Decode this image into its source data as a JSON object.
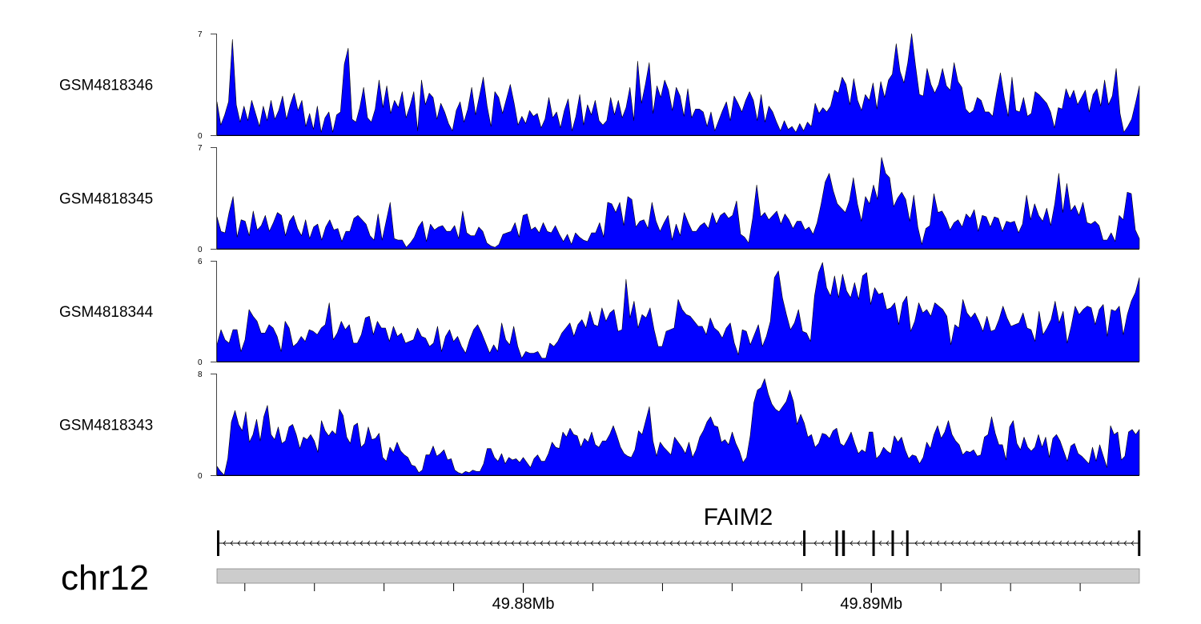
{
  "chart_data": {
    "type": "area",
    "fill_color": "#0000ff",
    "ideogram_color": "#cccccc",
    "chromosome": "chr12",
    "xlim": [
      49.8712,
      49.8977
    ],
    "x_ticks": [
      {
        "value": 49.88,
        "label": "49.88Mb"
      },
      {
        "value": 49.89,
        "label": "49.89Mb"
      }
    ],
    "tracks": [
      {
        "name": "GSM4818346",
        "ylim": [
          0,
          7
        ],
        "ytick_labels": [
          "0",
          "7"
        ],
        "values": [
          2.3,
          0.7,
          1.4,
          2.3,
          6.6,
          2.1,
          0.9,
          2.0,
          1.0,
          2.4,
          1.5,
          0.6,
          2.0,
          1.0,
          2.4,
          1.1,
          1.7,
          2.7,
          1.1,
          2.1,
          2.9,
          1.7,
          2.4,
          0.6,
          1.5,
          0.4,
          2.0,
          0.2,
          1.2,
          1.6,
          0.2,
          1.4,
          1.6,
          4.9,
          6.0,
          1.1,
          0.9,
          1.9,
          3.3,
          1.2,
          0.9,
          1.8,
          3.8,
          1.9,
          3.4,
          1.5,
          2.4,
          1.9,
          3.0,
          1.2,
          2.0,
          3.0,
          0.3,
          3.8,
          2.1,
          2.9,
          2.6,
          1.1,
          2.2,
          1.6,
          0.8,
          0.3,
          1.7,
          2.3,
          0.9,
          1.8,
          3.3,
          1.4,
          2.7,
          4.0,
          2.0,
          0.6,
          3.0,
          2.6,
          1.5,
          2.5,
          3.5,
          2.2,
          0.7,
          1.3,
          0.8,
          1.7,
          1.3,
          1.5,
          0.5,
          1.1,
          2.6,
          1.2,
          1.6,
          0.5,
          1.7,
          2.5,
          0.3,
          1.3,
          2.8,
          0.7,
          2.1,
          1.4,
          2.4,
          1.0,
          0.7,
          1.0,
          2.6,
          1.4,
          2.4,
          1.2,
          1.9,
          3.3,
          1.0,
          5.1,
          2.2,
          3.5,
          5.0,
          1.5,
          3.4,
          2.6,
          3.8,
          3.1,
          1.7,
          3.3,
          2.7,
          1.3,
          3.2,
          1.2,
          1.8,
          1.8,
          1.6,
          0.6,
          1.6,
          0.3,
          1.0,
          1.7,
          2.3,
          1.0,
          2.7,
          2.2,
          1.6,
          2.4,
          3.0,
          2.4,
          1.0,
          2.8,
          0.9,
          2.0,
          1.6,
          0.9,
          0.3,
          1.0,
          0.4,
          0.6,
          0.2,
          0.8,
          0.3,
          0.9,
          0.6,
          2.2,
          1.5,
          1.9,
          1.6,
          2.0,
          3.1,
          2.9,
          4.0,
          3.5,
          2.1,
          3.9,
          2.4,
          1.7,
          2.8,
          2.4,
          3.6,
          1.8,
          3.7,
          2.6,
          3.8,
          4.2,
          6.3,
          4.4,
          3.6,
          5.0,
          7.0,
          4.8,
          2.8,
          2.7,
          4.6,
          3.5,
          2.9,
          3.5,
          4.6,
          3.4,
          3.1,
          5.0,
          3.7,
          3.3,
          1.8,
          1.5,
          1.7,
          2.6,
          2.4,
          1.6,
          1.6,
          1.3,
          2.9,
          4.3,
          2.6,
          1.3,
          4.0,
          1.7,
          1.6,
          2.6,
          1.3,
          1.5,
          3.0,
          2.8,
          2.5,
          2.2,
          1.6,
          0.5,
          1.9,
          1.8,
          3.2,
          2.5,
          3.1,
          2.1,
          2.6,
          3.1,
          1.6,
          2.8,
          3.2,
          2.0,
          3.8,
          2.1,
          2.7,
          4.6,
          1.5,
          0.2,
          0.6,
          1.1,
          2.2,
          3.4
        ]
      },
      {
        "name": "GSM4818345",
        "ylim": [
          0,
          7
        ],
        "ytick_labels": [
          "0",
          "7"
        ],
        "values": [
          2.2,
          1.2,
          1.1,
          2.5,
          3.6,
          0.8,
          2.0,
          1.9,
          0.9,
          2.6,
          1.3,
          1.6,
          2.3,
          1.2,
          1.8,
          2.5,
          2.3,
          0.9,
          1.9,
          2.3,
          1.4,
          0.9,
          2.0,
          0.7,
          1.5,
          1.7,
          0.6,
          1.5,
          2.0,
          1.3,
          1.4,
          0.5,
          1.2,
          1.2,
          2.1,
          2.3,
          2.0,
          1.7,
          0.9,
          0.6,
          2.4,
          0.6,
          1.9,
          3.2,
          0.7,
          0.6,
          0.6,
          0.1,
          0.4,
          0.8,
          1.5,
          1.9,
          0.5,
          1.7,
          1.3,
          1.5,
          1.6,
          1.2,
          1.2,
          1.6,
          0.7,
          2.6,
          1.1,
          0.9,
          0.9,
          1.5,
          1.2,
          0.4,
          0.2,
          0.1,
          0.3,
          1.0,
          1.1,
          1.2,
          1.8,
          0.8,
          2.3,
          2.4,
          1.3,
          1.5,
          1.1,
          1.8,
          1.2,
          1.1,
          1.6,
          1.0,
          0.5,
          1.0,
          0.3,
          1.1,
          0.8,
          0.6,
          0.5,
          1.1,
          1.1,
          1.8,
          0.8,
          3.2,
          3.1,
          2.5,
          3.2,
          1.6,
          3.6,
          3.4,
          1.5,
          1.9,
          2.0,
          1.4,
          3.2,
          1.9,
          1.2,
          1.8,
          2.3,
          0.6,
          1.7,
          0.9,
          2.5,
          1.8,
          1.2,
          1.2,
          1.6,
          1.8,
          1.4,
          2.5,
          1.7,
          2.3,
          2.5,
          2.1,
          2.3,
          3.3,
          1.0,
          0.8,
          0.4,
          2.1,
          4.4,
          2.2,
          2.5,
          2.0,
          2.3,
          2.6,
          1.7,
          2.4,
          2.0,
          1.4,
          1.9,
          1.9,
          1.3,
          1.5,
          1.0,
          1.8,
          3.1,
          4.6,
          5.2,
          4.0,
          3.1,
          2.8,
          2.5,
          3.3,
          4.9,
          3.1,
          1.9,
          3.6,
          3.1,
          4.4,
          3.4,
          6.3,
          5.2,
          4.9,
          2.9,
          3.5,
          3.9,
          3.4,
          1.9,
          3.7,
          1.5,
          0.3,
          1.4,
          1.6,
          3.8,
          2.5,
          2.6,
          2.1,
          1.3,
          1.8,
          2.0,
          1.5,
          2.4,
          2.1,
          2.7,
          1.2,
          2.3,
          2.2,
          1.5,
          2.2,
          2.1,
          1.2,
          1.9,
          1.8,
          1.9,
          1.1,
          1.7,
          3.7,
          2.0,
          3.1,
          2.3,
          1.9,
          2.8,
          1.6,
          3.1,
          5.2,
          2.5,
          4.5,
          2.6,
          3.0,
          2.3,
          3.2,
          1.8,
          1.7,
          1.9,
          1.6,
          0.6,
          0.6,
          1.1,
          0.5,
          2.3,
          2.0,
          3.9,
          3.8,
          1.3,
          0.7
        ]
      },
      {
        "name": "GSM4818344",
        "ylim": [
          0,
          6
        ],
        "ytick_labels": [
          "0",
          "6"
        ],
        "values": [
          1.0,
          1.9,
          1.3,
          1.1,
          1.9,
          1.9,
          0.6,
          1.3,
          3.1,
          2.7,
          2.4,
          1.7,
          1.7,
          2.2,
          2.0,
          1.5,
          0.6,
          2.4,
          2.0,
          0.9,
          1.1,
          1.5,
          1.2,
          1.9,
          1.8,
          1.6,
          2.0,
          2.2,
          3.5,
          1.3,
          1.7,
          2.4,
          1.9,
          2.2,
          1.1,
          1.1,
          1.6,
          2.6,
          2.7,
          1.6,
          2.4,
          2.0,
          2.0,
          1.2,
          2.1,
          1.5,
          1.7,
          1.1,
          1.2,
          1.3,
          2.0,
          1.5,
          1.4,
          0.9,
          1.1,
          2.1,
          0.6,
          1.5,
          1.9,
          1.2,
          1.5,
          0.9,
          0.5,
          1.3,
          1.9,
          2.2,
          1.7,
          1.1,
          0.5,
          1.0,
          0.6,
          2.3,
          1.3,
          1.0,
          2.1,
          0.9,
          0.2,
          0.6,
          0.5,
          0.5,
          0.6,
          0.2,
          0.2,
          1.1,
          0.9,
          1.2,
          1.7,
          2.0,
          2.3,
          1.5,
          2.2,
          2.5,
          2.0,
          3.0,
          2.2,
          2.1,
          3.2,
          2.4,
          2.9,
          3.1,
          1.8,
          1.9,
          4.9,
          2.6,
          3.6,
          2.0,
          2.8,
          2.6,
          3.2,
          1.9,
          0.9,
          0.9,
          1.8,
          1.9,
          2.0,
          3.7,
          3.1,
          2.8,
          2.7,
          2.4,
          2.1,
          2.1,
          1.6,
          2.6,
          2.0,
          1.8,
          1.4,
          2.0,
          2.3,
          1.1,
          0.4,
          1.9,
          1.8,
          1.0,
          1.6,
          2.2,
          0.9,
          1.5,
          2.4,
          5.0,
          5.4,
          3.8,
          2.8,
          1.9,
          2.3,
          3.1,
          1.8,
          1.7,
          1.2,
          3.9,
          5.3,
          5.9,
          4.4,
          3.9,
          5.1,
          3.8,
          5.2,
          4.2,
          3.8,
          4.7,
          3.7,
          5.1,
          5.3,
          3.4,
          4.4,
          4.0,
          4.1,
          3.1,
          3.2,
          3.5,
          2.2,
          3.5,
          3.9,
          1.8,
          2.4,
          3.5,
          2.9,
          3.1,
          2.7,
          3.5,
          3.3,
          3.1,
          2.7,
          1.0,
          2.2,
          2.0,
          3.7,
          2.9,
          2.6,
          2.9,
          2.4,
          1.8,
          2.7,
          1.8,
          1.9,
          2.5,
          3.3,
          2.6,
          2.1,
          2.2,
          2.3,
          2.9,
          2.0,
          1.9,
          1.2,
          3.0,
          1.6,
          2.0,
          2.5,
          3.6,
          2.3,
          3.0,
          1.1,
          2.1,
          3.3,
          2.8,
          3.1,
          3.3,
          3.2,
          2.2,
          3.1,
          3.4,
          1.5,
          3.1,
          3.0,
          3.3,
          1.6,
          2.8,
          3.6,
          4.1,
          5.0
        ]
      },
      {
        "name": "GSM4818343",
        "ylim": [
          0,
          8
        ],
        "ytick_labels": [
          "0",
          "8"
        ],
        "values": [
          0.7,
          0.3,
          0.0,
          1.3,
          4.2,
          5.1,
          4.0,
          3.5,
          5.0,
          2.6,
          3.2,
          4.4,
          2.7,
          4.6,
          5.5,
          3.2,
          2.8,
          3.8,
          2.5,
          2.7,
          3.8,
          4.0,
          3.2,
          2.1,
          3.0,
          2.8,
          3.2,
          2.7,
          1.8,
          4.3,
          3.5,
          3.1,
          3.5,
          3.2,
          5.2,
          4.7,
          3.0,
          2.5,
          3.9,
          4.1,
          2.2,
          2.5,
          3.8,
          2.8,
          2.9,
          3.3,
          1.4,
          1.1,
          2.2,
          1.8,
          2.6,
          1.9,
          1.6,
          1.4,
          0.8,
          0.7,
          0.2,
          0.4,
          1.6,
          1.6,
          2.3,
          1.5,
          1.7,
          2.0,
          1.2,
          1.3,
          0.4,
          0.2,
          0.1,
          0.3,
          0.2,
          0.4,
          0.3,
          0.3,
          0.9,
          2.1,
          2.1,
          1.4,
          1.1,
          1.7,
          0.9,
          1.4,
          1.2,
          1.3,
          1.0,
          1.4,
          1.0,
          0.6,
          1.3,
          1.6,
          1.1,
          1.1,
          1.7,
          2.6,
          2.2,
          2.1,
          3.4,
          3.0,
          3.7,
          3.2,
          3.1,
          2.2,
          2.9,
          2.6,
          3.4,
          2.4,
          2.2,
          2.7,
          2.7,
          3.2,
          3.9,
          3.1,
          2.2,
          1.7,
          1.5,
          1.4,
          2.0,
          3.5,
          3.2,
          4.3,
          5.4,
          2.7,
          1.5,
          2.6,
          2.2,
          1.9,
          1.6,
          3.0,
          2.6,
          2.2,
          1.7,
          2.6,
          1.4,
          2.0,
          3.0,
          3.5,
          4.2,
          4.6,
          3.9,
          3.8,
          2.6,
          2.8,
          2.4,
          3.4,
          2.5,
          1.9,
          1.0,
          1.4,
          3.1,
          5.7,
          6.7,
          6.9,
          7.6,
          6.4,
          5.6,
          5.2,
          5.0,
          5.4,
          5.8,
          6.7,
          5.8,
          4.0,
          4.8,
          4.1,
          3.0,
          3.2,
          2.2,
          2.5,
          3.3,
          3.2,
          2.9,
          3.5,
          3.7,
          2.5,
          2.3,
          2.8,
          3.4,
          2.5,
          1.7,
          2.0,
          1.8,
          3.4,
          3.4,
          1.3,
          1.6,
          2.2,
          1.9,
          1.7,
          3.1,
          2.6,
          3.0,
          2.0,
          1.3,
          1.6,
          1.5,
          0.9,
          1.4,
          2.6,
          2.1,
          3.2,
          3.9,
          2.9,
          3.4,
          4.3,
          3.2,
          2.7,
          2.4,
          1.6,
          1.9,
          1.8,
          2.0,
          1.5,
          1.6,
          3.0,
          3.2,
          4.6,
          3.3,
          2.4,
          2.4,
          1.2,
          3.8,
          4.3,
          2.5,
          2.0,
          3.0,
          2.2,
          1.9,
          2.2,
          3.2,
          2.2,
          3.0,
          1.4,
          2.9,
          3.2,
          2.7,
          1.9,
          1.1,
          2.3,
          2.5,
          1.7,
          1.5,
          1.2,
          0.9,
          2.2,
          1.1,
          2.4,
          1.5,
          0.6,
          3.9,
          3.2,
          3.4,
          1.2,
          1.5,
          3.4,
          3.6,
          3.2,
          3.6
        ]
      }
    ],
    "gene": {
      "name": "FAIM2",
      "strand": "-",
      "start": 49.8712,
      "end": 49.8977,
      "exons": [
        {
          "start": 49.8712,
          "end": 49.87124
        },
        {
          "start": 49.88804,
          "end": 49.88808
        },
        {
          "start": 49.88897,
          "end": 49.88904
        },
        {
          "start": 49.88916,
          "end": 49.88924
        },
        {
          "start": 49.89003,
          "end": 49.89006
        },
        {
          "start": 49.89058,
          "end": 49.89061
        },
        {
          "start": 49.891,
          "end": 49.89104
        },
        {
          "start": 49.89766,
          "end": 49.8977
        }
      ]
    }
  }
}
